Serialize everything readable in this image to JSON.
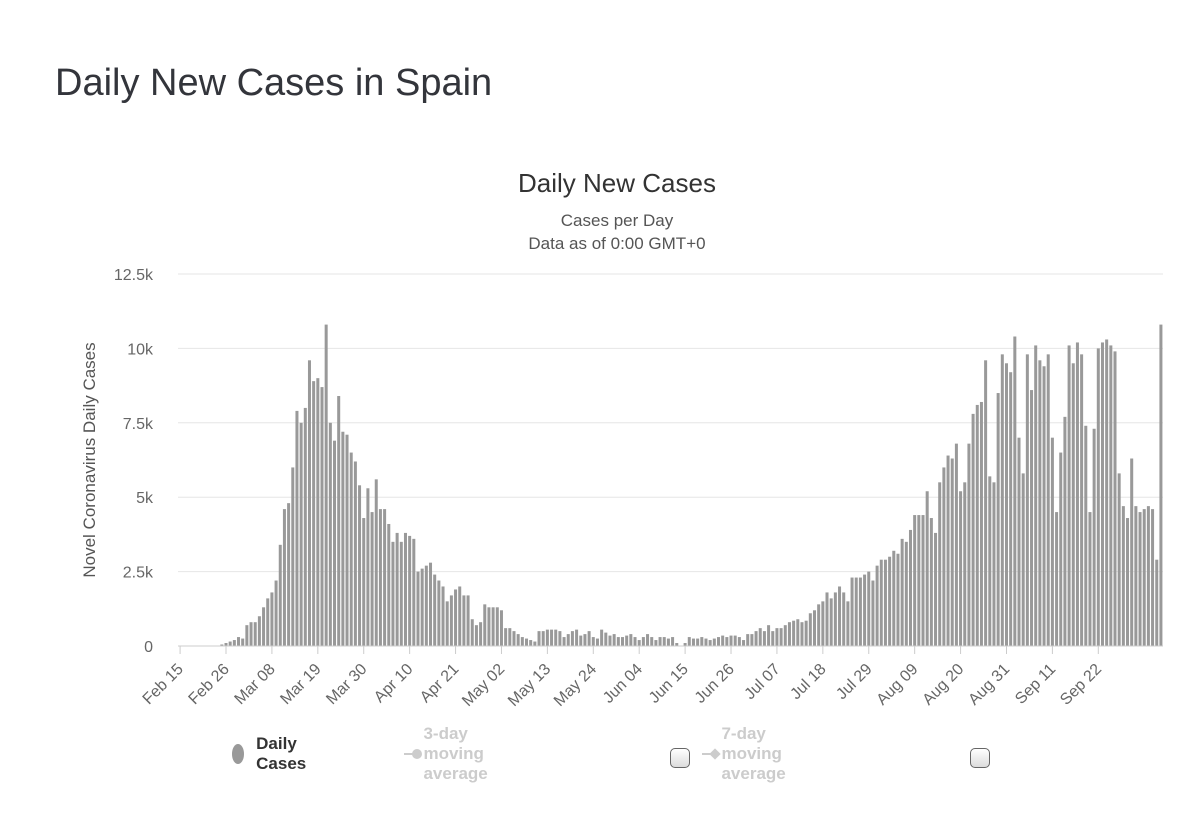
{
  "page": {
    "title": "Daily New Cases in Spain"
  },
  "chart_data": {
    "type": "bar",
    "title": "Daily New Cases",
    "subtitle": "Cases per Day",
    "subtitle2": "Data as of 0:00 GMT+0",
    "ylabel": "Novel Coronavirus Daily Cases",
    "xlabel": "",
    "ylim": [
      0,
      12500
    ],
    "y_ticks": [
      0,
      2500,
      5000,
      7500,
      10000,
      12500
    ],
    "y_tick_labels": [
      "0",
      "2.5k",
      "5k",
      "7.5k",
      "10k",
      "12.5k"
    ],
    "x_tick_labels": [
      "Feb 15",
      "Feb 26",
      "Mar 08",
      "Mar 19",
      "Mar 30",
      "Apr 10",
      "Apr 21",
      "May 02",
      "May 13",
      "May 24",
      "Jun 04",
      "Jun 15",
      "Jun 26",
      "Jul 07",
      "Jul 18",
      "Jul 29",
      "Aug 09",
      "Aug 20",
      "Aug 31",
      "Sep 11",
      "Sep 22"
    ],
    "bar_color": "#999999",
    "grid": true,
    "series": [
      {
        "name": "Daily Cases",
        "start_date": "Feb 15",
        "values": [
          0,
          0,
          0,
          0,
          0,
          0,
          0,
          0,
          0,
          0,
          50,
          100,
          150,
          200,
          300,
          250,
          700,
          800,
          800,
          1000,
          1300,
          1600,
          1800,
          2200,
          3400,
          4600,
          4800,
          6000,
          7900,
          7500,
          8000,
          9600,
          8900,
          9000,
          8700,
          10800,
          7500,
          6900,
          8400,
          7200,
          7100,
          6500,
          6200,
          5400,
          4300,
          5300,
          4500,
          5600,
          4600,
          4600,
          4100,
          3500,
          3800,
          3500,
          3800,
          3700,
          3600,
          2500,
          2600,
          2700,
          2800,
          2400,
          2200,
          2000,
          1500,
          1700,
          1900,
          2000,
          1700,
          1700,
          900,
          700,
          800,
          1400,
          1300,
          1300,
          1300,
          1200,
          600,
          600,
          500,
          400,
          300,
          250,
          200,
          150,
          500,
          500,
          550,
          550,
          550,
          500,
          300,
          400,
          500,
          550,
          350,
          400,
          500,
          300,
          250,
          550,
          450,
          350,
          400,
          300,
          300,
          350,
          400,
          300,
          200,
          300,
          400,
          300,
          200,
          300,
          300,
          250,
          300,
          100,
          0,
          100,
          300,
          250,
          250,
          300,
          250,
          200,
          250,
          300,
          350,
          300,
          350,
          350,
          300,
          200,
          400,
          400,
          500,
          600,
          500,
          700,
          500,
          600,
          600,
          700,
          800,
          850,
          900,
          800,
          850,
          1100,
          1200,
          1400,
          1500,
          1800,
          1600,
          1800,
          2000,
          1800,
          1500,
          2300,
          2300,
          2300,
          2400,
          2500,
          2200,
          2700,
          2900,
          2900,
          3000,
          3200,
          3100,
          3600,
          3500,
          3900,
          4400,
          4400,
          4400,
          5200,
          4300,
          3800,
          5500,
          6000,
          6400,
          6300,
          6800,
          5200,
          5500,
          6800,
          7800,
          8100,
          8200,
          9600,
          5700,
          5500,
          8500,
          9800,
          9500,
          9200,
          10400,
          7000,
          5800,
          9800,
          8600,
          10100,
          9600,
          9400,
          9800,
          7000,
          4500,
          6500,
          7700,
          10100,
          9500,
          10200,
          9800,
          7400,
          4500,
          7300,
          10000,
          10200,
          10300,
          10100,
          9900,
          5800,
          4700,
          4300,
          6300,
          4700,
          4500,
          4600,
          4700,
          4600,
          2900,
          10800
        ]
      },
      {
        "name": "3-day moving average"
      },
      {
        "name": "7-day moving average"
      }
    ]
  }
}
